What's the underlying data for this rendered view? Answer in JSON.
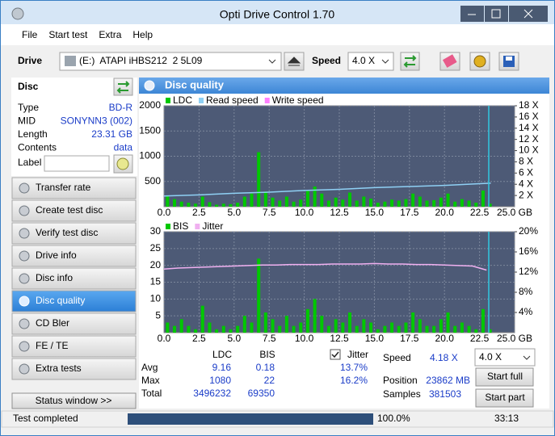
{
  "window": {
    "title": "Opti Drive Control 1.70"
  },
  "menu": [
    "File",
    "Start test",
    "Extra",
    "Help"
  ],
  "toolbar": {
    "drive_label": "Drive",
    "drive": "(E:)  ATAPI iHBS212  2 5L09",
    "speed_label": "Speed",
    "speed": "4.0 X"
  },
  "disc": {
    "heading": "Disc",
    "fields": [
      {
        "label": "Type",
        "value": "BD-R"
      },
      {
        "label": "MID",
        "value": "SONYNN3 (002)"
      },
      {
        "label": "Length",
        "value": "23.31 GB"
      },
      {
        "label": "Contents",
        "value": "data"
      }
    ],
    "label_field": "Label"
  },
  "nav": [
    "Transfer rate",
    "Create test disc",
    "Verify test disc",
    "Drive info",
    "Disc info",
    "Disc quality",
    "CD Bler",
    "FE / TE",
    "Extra tests"
  ],
  "status_window": "Status window >>",
  "panel_title": "Disc quality",
  "chart_data": [
    {
      "type": "bar",
      "xlim": [
        0,
        25
      ],
      "ylim": [
        0,
        2000
      ],
      "y2lim": [
        0,
        18
      ],
      "grid": true,
      "xticks": [
        {
          "value": 0,
          "label": "0.0"
        },
        2.5,
        {
          "value": 5,
          "label": "5.0"
        },
        7.5,
        {
          "value": 10,
          "label": "10.0"
        },
        12.5,
        {
          "value": 15,
          "label": "15.0"
        },
        17.5,
        {
          "value": 20,
          "label": "20.0"
        },
        22.5,
        {
          "value": 25,
          "label": "25.0 GB"
        }
      ],
      "yticks": [
        500,
        1000,
        1500,
        2000
      ],
      "y2ticks": [
        {
          "value": 2,
          "label": "2 X"
        },
        {
          "value": 4,
          "label": "4 X"
        },
        {
          "value": 6,
          "label": "6 X"
        },
        {
          "value": 8,
          "label": "8 X"
        },
        {
          "value": 10,
          "label": "10 X"
        },
        {
          "value": 12,
          "label": "12 X"
        },
        {
          "value": 14,
          "label": "14 X"
        },
        {
          "value": 16,
          "label": "16 X"
        },
        {
          "value": 18,
          "label": "18 X"
        }
      ],
      "series": [
        {
          "name": "LDC",
          "type": "bar",
          "color": "#00c800",
          "x": [
            0.25,
            0.75,
            1.25,
            1.75,
            2.25,
            2.75,
            3.25,
            3.75,
            4.25,
            4.75,
            5.25,
            5.75,
            6.25,
            6.75,
            7.25,
            7.75,
            8.25,
            8.75,
            9.25,
            9.75,
            10.25,
            10.75,
            11.25,
            11.75,
            12.25,
            12.75,
            13.25,
            13.75,
            14.25,
            14.75,
            15.25,
            15.75,
            16.25,
            16.75,
            17.25,
            17.75,
            18.25,
            18.75,
            19.25,
            19.75,
            20.25,
            20.75,
            21.25,
            21.75,
            22.25,
            22.75,
            23.25
          ],
          "values": [
            220,
            150,
            100,
            80,
            60,
            200,
            90,
            40,
            60,
            50,
            80,
            200,
            260,
            1080,
            300,
            180,
            120,
            200,
            100,
            140,
            320,
            400,
            260,
            120,
            180,
            140,
            280,
            120,
            200,
            160,
            80,
            100,
            140,
            120,
            150,
            260,
            200,
            120,
            130,
            180,
            260,
            100,
            150,
            120,
            80,
            320,
            60
          ]
        },
        {
          "name": "Read speed",
          "type": "line",
          "axis": "y2",
          "color": "#8fd0f4",
          "x": [
            0,
            2.5,
            5,
            7.5,
            10,
            12.5,
            15,
            17.5,
            20,
            22.5,
            23.3
          ],
          "values": [
            1.9,
            2.1,
            2.4,
            2.6,
            2.9,
            3.1,
            3.4,
            3.6,
            3.8,
            4.1,
            4.2
          ]
        },
        {
          "name": "Write speed",
          "type": "line",
          "axis": "y2",
          "color": "#ff80ff",
          "x": [
            0,
            2.5,
            5,
            7.5,
            10,
            12.5,
            15,
            17.5,
            20,
            22.5,
            23.3
          ],
          "values": [
            null,
            null,
            null,
            null,
            null,
            null,
            null,
            null,
            null,
            null,
            null
          ]
        }
      ]
    },
    {
      "type": "bar",
      "xlim": [
        0,
        25
      ],
      "ylim": [
        0,
        30
      ],
      "y2lim": [
        0,
        20
      ],
      "grid": true,
      "xticks": [
        {
          "value": 0,
          "label": "0.0"
        },
        2.5,
        {
          "value": 5,
          "label": "5.0"
        },
        7.5,
        {
          "value": 10,
          "label": "10.0"
        },
        12.5,
        {
          "value": 15,
          "label": "15.0"
        },
        17.5,
        {
          "value": 20,
          "label": "20.0"
        },
        22.5,
        {
          "value": 25,
          "label": "25.0 GB"
        }
      ],
      "yticks": [
        5,
        10,
        15,
        20,
        25,
        30
      ],
      "y2ticks": [
        {
          "value": 4,
          "label": "4%"
        },
        {
          "value": 8,
          "label": "8%"
        },
        {
          "value": 12,
          "label": "12%"
        },
        {
          "value": 16,
          "label": "16%"
        },
        {
          "value": 20,
          "label": "20%"
        }
      ],
      "series": [
        {
          "name": "BIS",
          "type": "bar",
          "color": "#00c800",
          "x": [
            0.25,
            0.75,
            1.25,
            1.75,
            2.25,
            2.75,
            3.25,
            3.75,
            4.25,
            4.75,
            5.25,
            5.75,
            6.25,
            6.75,
            7.25,
            7.75,
            8.25,
            8.75,
            9.25,
            9.75,
            10.25,
            10.75,
            11.25,
            11.75,
            12.25,
            12.75,
            13.25,
            13.75,
            14.25,
            14.75,
            15.25,
            15.75,
            16.25,
            16.75,
            17.25,
            17.75,
            18.25,
            18.75,
            19.25,
            19.75,
            20.25,
            20.75,
            21.25,
            21.75,
            22.25,
            22.75,
            23.25
          ],
          "values": [
            3,
            2,
            4,
            2,
            1,
            8,
            3,
            1,
            2,
            1,
            2,
            5,
            3,
            22,
            6,
            4,
            2,
            5,
            2,
            3,
            7,
            10,
            5,
            2,
            4,
            3,
            6,
            2,
            4,
            3,
            1,
            2,
            3,
            2,
            3,
            6,
            4,
            2,
            2,
            4,
            6,
            2,
            3,
            2,
            1,
            7,
            1
          ]
        },
        {
          "name": "Jitter",
          "type": "line",
          "axis": "y2",
          "color": "#f0b0f0",
          "x": [
            0,
            1,
            2,
            3,
            4,
            5,
            6,
            7,
            8,
            9,
            10,
            11,
            12,
            13,
            14,
            15,
            16,
            17,
            18,
            19,
            20,
            21,
            22,
            23
          ],
          "values": [
            12.6,
            12.8,
            12.9,
            13.0,
            13.1,
            13.2,
            13.3,
            13.4,
            13.4,
            13.5,
            13.5,
            13.5,
            13.6,
            13.6,
            13.6,
            13.7,
            13.6,
            13.6,
            13.5,
            13.5,
            13.4,
            13.3,
            13.2,
            12.4
          ]
        }
      ]
    }
  ],
  "stats": {
    "headers": [
      "LDC",
      "BIS"
    ],
    "jitter_label": "Jitter",
    "rows": [
      {
        "label": "Avg",
        "ldc": 9.16,
        "bis": 0.18,
        "jitter": "13.7%"
      },
      {
        "label": "Max",
        "ldc": 1080,
        "bis": 22,
        "jitter": "16.2%"
      },
      {
        "label": "Total",
        "ldc": 3496232,
        "bis": 69350
      }
    ]
  },
  "info": {
    "speed_label": "Speed",
    "speed": "4.18 X",
    "speed_select": "4.0 X",
    "position_label": "Position",
    "position": "23862 MB",
    "samples_label": "Samples",
    "samples": 381503,
    "start_full": "Start full",
    "start_part": "Start part"
  },
  "status": {
    "text": "Test completed",
    "progress": "100.0%",
    "time": "33:13"
  }
}
